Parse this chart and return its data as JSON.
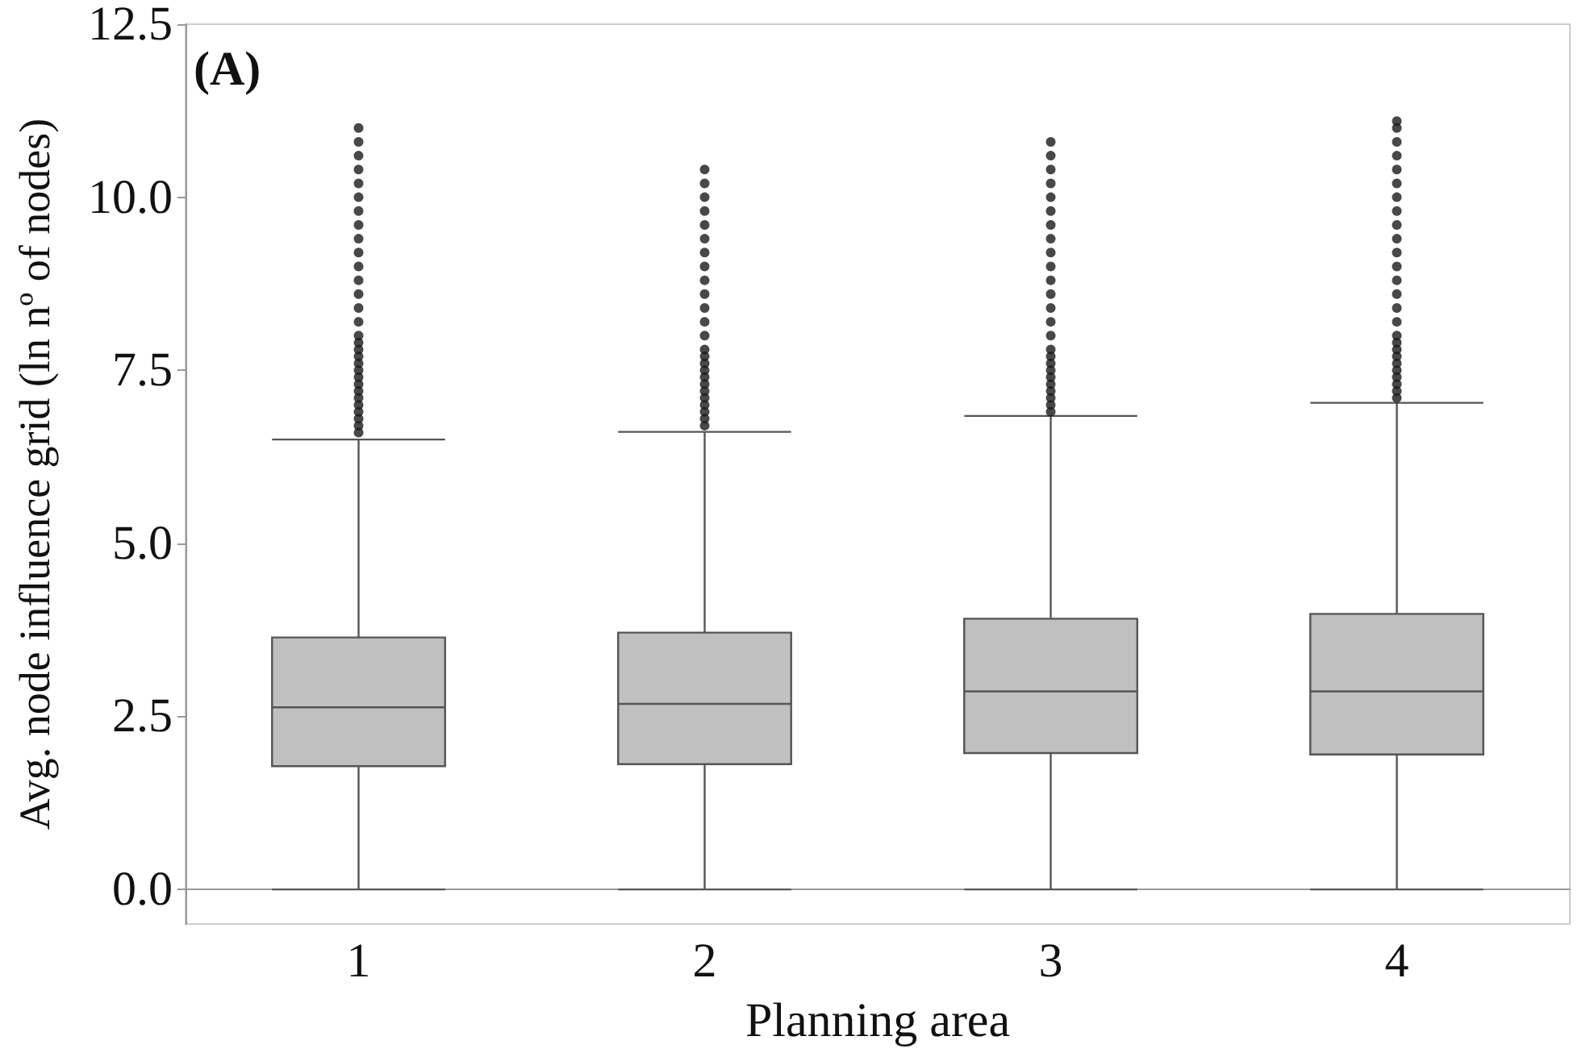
{
  "chart_data": {
    "type": "box",
    "xlabel": "Planning area",
    "ylabel": "Avg. node influence grid (ln nº of nodes)",
    "annotations": [
      "(A)"
    ],
    "categories": [
      "1",
      "2",
      "3",
      "4"
    ],
    "ylim": [
      -0.5,
      12.5
    ],
    "yticks": [
      {
        "value": 0,
        "label": "0.0"
      },
      2.5,
      {
        "value": 5,
        "label": "5.0"
      },
      7.5,
      {
        "value": 10,
        "label": "10.0"
      },
      12.5
    ],
    "series": [
      {
        "color": "#c0c0c0",
        "boxes": [
          {
            "low": 0,
            "q1": 1.78,
            "median": 2.63,
            "q3": 3.64,
            "high": 6.5,
            "outliers": [
              6.6,
              6.7,
              6.8,
              6.9,
              7.0,
              7.1,
              7.2,
              7.3,
              7.4,
              7.5,
              7.6,
              7.7,
              7.8,
              7.9,
              8.0,
              8.2,
              8.4,
              8.6,
              8.8,
              9.0,
              9.2,
              9.4,
              9.6,
              9.8,
              10.0,
              10.2,
              10.4,
              10.6,
              10.8,
              11.0
            ]
          },
          {
            "low": 0,
            "q1": 1.81,
            "median": 2.68,
            "q3": 3.71,
            "high": 6.61,
            "outliers": [
              6.7,
              6.8,
              6.9,
              7.0,
              7.1,
              7.2,
              7.3,
              7.4,
              7.5,
              7.6,
              7.7,
              7.8,
              8.0,
              8.2,
              8.4,
              8.6,
              8.8,
              9.0,
              9.2,
              9.4,
              9.6,
              9.8,
              10.0,
              10.2,
              10.4
            ]
          },
          {
            "low": 0,
            "q1": 1.97,
            "median": 2.86,
            "q3": 3.91,
            "high": 6.84,
            "outliers": [
              6.9,
              7.0,
              7.1,
              7.2,
              7.3,
              7.4,
              7.5,
              7.6,
              7.7,
              7.8,
              8.0,
              8.2,
              8.4,
              8.6,
              8.8,
              9.0,
              9.2,
              9.4,
              9.6,
              9.8,
              10.0,
              10.2,
              10.4,
              10.6,
              10.8
            ]
          },
          {
            "low": 0,
            "q1": 1.95,
            "median": 2.86,
            "q3": 3.98,
            "high": 7.03,
            "outliers": [
              7.1,
              7.2,
              7.3,
              7.4,
              7.5,
              7.6,
              7.7,
              7.8,
              7.9,
              8.0,
              8.2,
              8.4,
              8.6,
              8.8,
              9.0,
              9.2,
              9.4,
              9.6,
              9.8,
              10.0,
              10.2,
              10.4,
              10.6,
              10.8,
              11.0,
              11.1
            ]
          }
        ]
      }
    ]
  }
}
